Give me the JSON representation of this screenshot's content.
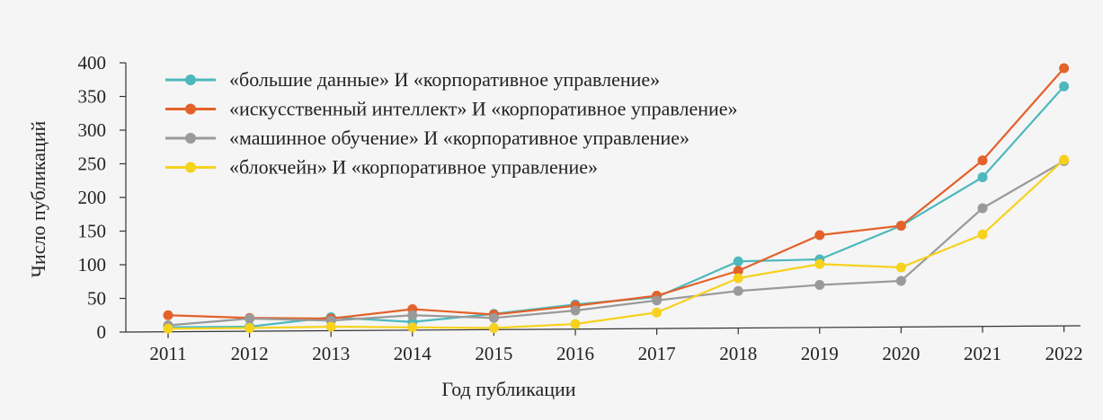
{
  "chart_data": {
    "type": "line",
    "xlabel": "Год публикации",
    "ylabel": "Число публикаций",
    "categories": [
      "2011",
      "2012",
      "2013",
      "2014",
      "2015",
      "2016",
      "2017",
      "2018",
      "2019",
      "2020",
      "2021",
      "2022"
    ],
    "ylim": [
      0,
      400
    ],
    "yticks": [
      0,
      50,
      100,
      150,
      200,
      250,
      300,
      350,
      400
    ],
    "grid": false,
    "legend_position": "top-left",
    "series": [
      {
        "name": "«большие данные» И «корпоративное управление»",
        "color": "#4db8bd",
        "values": [
          7,
          8,
          22,
          15,
          27,
          41,
          52,
          105,
          108,
          158,
          230,
          365
        ]
      },
      {
        "name": "«искусственный интеллект» И «корпоративное управление»",
        "color": "#e3612a",
        "values": [
          25,
          21,
          20,
          34,
          26,
          39,
          54,
          91,
          144,
          158,
          255,
          392
        ]
      },
      {
        "name": "«машинное обучение» И «корпоративное управление»",
        "color": "#9a9a9a",
        "values": [
          10,
          20,
          17,
          25,
          21,
          32,
          47,
          61,
          70,
          76,
          184,
          254
        ]
      },
      {
        "name": "«блокчейн» И «корпоративное управление»",
        "color": "#f6d21e",
        "values": [
          5,
          6,
          8,
          7,
          6,
          12,
          29,
          80,
          101,
          96,
          145,
          256
        ]
      }
    ]
  }
}
